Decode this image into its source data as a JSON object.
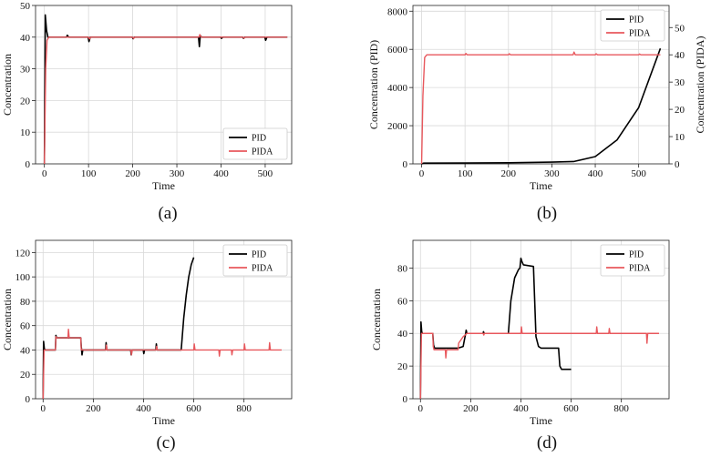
{
  "colors": {
    "pid": "#000000",
    "pida": "#e8585d",
    "grid": "#d9d9d9",
    "axis": "#222222"
  },
  "chart_data": [
    {
      "id": "a",
      "type": "line",
      "caption": "(a)",
      "xlabel": "Time",
      "ylabel": "Concentration",
      "xlim": [
        -20,
        560
      ],
      "ylim": [
        0,
        50
      ],
      "xticks": [
        0,
        100,
        200,
        300,
        400,
        500
      ],
      "yticks": [
        0,
        10,
        20,
        30,
        40,
        50
      ],
      "legend": {
        "position": "bottom-right",
        "entries": [
          "PID",
          "PIDA"
        ]
      },
      "series": [
        {
          "name": "PID",
          "points": [
            [
              0,
              0
            ],
            [
              2,
              47
            ],
            [
              5,
              42
            ],
            [
              8,
              40
            ],
            [
              50,
              40
            ],
            [
              52,
              40.6
            ],
            [
              55,
              40
            ],
            [
              99,
              40
            ],
            [
              101,
              38.6
            ],
            [
              104,
              40
            ],
            [
              199,
              40
            ],
            [
              201,
              39.5
            ],
            [
              204,
              40
            ],
            [
              349,
              40
            ],
            [
              351,
              37
            ],
            [
              353,
              40.5
            ],
            [
              356,
              40
            ],
            [
              399,
              40
            ],
            [
              401,
              39.6
            ],
            [
              404,
              40
            ],
            [
              449,
              40
            ],
            [
              451,
              39.6
            ],
            [
              454,
              40
            ],
            [
              499,
              40
            ],
            [
              501,
              39
            ],
            [
              504,
              40
            ],
            [
              550,
              40
            ]
          ]
        },
        {
          "name": "PIDA",
          "points": [
            [
              0,
              0
            ],
            [
              3,
              30
            ],
            [
              6,
              39
            ],
            [
              10,
              40
            ],
            [
              100,
              40
            ],
            [
              102,
              39.4
            ],
            [
              105,
              40
            ],
            [
              200,
              40
            ],
            [
              202,
              39.6
            ],
            [
              205,
              40
            ],
            [
              350,
              40
            ],
            [
              352,
              40.8
            ],
            [
              355,
              40
            ],
            [
              450,
              40
            ],
            [
              452,
              39.7
            ],
            [
              455,
              40
            ],
            [
              550,
              40
            ]
          ]
        }
      ]
    },
    {
      "id": "b",
      "type": "line",
      "caption": "(b)",
      "xlabel": "Time",
      "ylabel": "Concentration (PID)",
      "ylabel_right": "Concentration (PIDA)",
      "xlim": [
        -20,
        570
      ],
      "ylim": [
        0,
        8300
      ],
      "ylim_right": [
        0,
        58.1
      ],
      "xticks": [
        0,
        100,
        200,
        300,
        400,
        500
      ],
      "yticks": [
        0,
        2000,
        4000,
        6000,
        8000
      ],
      "yticks_right": [
        0,
        10,
        20,
        30,
        40,
        50
      ],
      "legend": {
        "position": "top-right",
        "entries": [
          "PID",
          "PIDA"
        ]
      },
      "series": [
        {
          "name": "PID",
          "axis": "left",
          "points": [
            [
              0,
              0
            ],
            [
              5,
              40
            ],
            [
              100,
              45
            ],
            [
              200,
              60
            ],
            [
              300,
              90
            ],
            [
              350,
              120
            ],
            [
              400,
              380
            ],
            [
              450,
              1250
            ],
            [
              500,
              2950
            ],
            [
              550,
              6050
            ]
          ]
        },
        {
          "name": "PIDA",
          "axis": "right",
          "points": [
            [
              0,
              0
            ],
            [
              3,
              25
            ],
            [
              7,
              39
            ],
            [
              12,
              40
            ],
            [
              100,
              40
            ],
            [
              102,
              40.5
            ],
            [
              105,
              40
            ],
            [
              200,
              40
            ],
            [
              202,
              40.4
            ],
            [
              205,
              40
            ],
            [
              349,
              40
            ],
            [
              351,
              41
            ],
            [
              354,
              40
            ],
            [
              400,
              40
            ],
            [
              402,
              40.4
            ],
            [
              405,
              40
            ],
            [
              500,
              40
            ],
            [
              502,
              40.3
            ],
            [
              505,
              40
            ],
            [
              550,
              40
            ]
          ]
        }
      ]
    },
    {
      "id": "c",
      "type": "line",
      "caption": "(c)",
      "xlabel": "Time",
      "ylabel": "Concentration",
      "xlim": [
        -30,
        990
      ],
      "ylim": [
        0,
        130
      ],
      "xticks": [
        0,
        200,
        400,
        600,
        800
      ],
      "yticks": [
        0,
        20,
        40,
        60,
        80,
        100,
        120
      ],
      "legend": {
        "position": "top-right",
        "entries": [
          "PID",
          "PIDA"
        ]
      },
      "series": [
        {
          "name": "PID",
          "points": [
            [
              0,
              0
            ],
            [
              2,
              47
            ],
            [
              5,
              41
            ],
            [
              8,
              40
            ],
            [
              49,
              40
            ],
            [
              51,
              52
            ],
            [
              54,
              50
            ],
            [
              150,
              50
            ],
            [
              152,
              43
            ],
            [
              155,
              36
            ],
            [
              158,
              40
            ],
            [
              249,
              40
            ],
            [
              251,
              46
            ],
            [
              254,
              40
            ],
            [
              349,
              40
            ],
            [
              351,
              36
            ],
            [
              354,
              40
            ],
            [
              399,
              40
            ],
            [
              401,
              37
            ],
            [
              404,
              40
            ],
            [
              449,
              40
            ],
            [
              451,
              45
            ],
            [
              454,
              40
            ],
            [
              550,
              40
            ],
            [
              560,
              66
            ],
            [
              570,
              85
            ],
            [
              580,
              100
            ],
            [
              590,
              110
            ],
            [
              600,
              116
            ]
          ]
        },
        {
          "name": "PIDA",
          "points": [
            [
              0,
              0
            ],
            [
              4,
              40
            ],
            [
              49,
              40
            ],
            [
              51,
              51
            ],
            [
              54,
              50
            ],
            [
              99,
              50
            ],
            [
              101,
              57
            ],
            [
              104,
              50
            ],
            [
              150,
              50
            ],
            [
              152,
              40
            ],
            [
              250,
              40
            ],
            [
              252,
              44
            ],
            [
              255,
              40
            ],
            [
              350,
              40
            ],
            [
              352,
              36
            ],
            [
              355,
              40
            ],
            [
              450,
              40
            ],
            [
              452,
              43
            ],
            [
              455,
              40
            ],
            [
              600,
              40
            ],
            [
              602,
              45
            ],
            [
              605,
              40
            ],
            [
              700,
              40
            ],
            [
              702,
              35
            ],
            [
              705,
              40
            ],
            [
              750,
              40
            ],
            [
              752,
              36
            ],
            [
              755,
              40
            ],
            [
              800,
              40
            ],
            [
              802,
              45
            ],
            [
              805,
              40
            ],
            [
              900,
              40
            ],
            [
              902,
              46
            ],
            [
              905,
              40
            ],
            [
              950,
              40
            ]
          ]
        }
      ]
    },
    {
      "id": "d",
      "type": "line",
      "caption": "(d)",
      "xlabel": "Time",
      "ylabel": "Concentration",
      "xlim": [
        -30,
        990
      ],
      "ylim": [
        0,
        97
      ],
      "xticks": [
        0,
        200,
        400,
        600,
        800
      ],
      "yticks": [
        0,
        20,
        40,
        60,
        80
      ],
      "legend": {
        "position": "top-right",
        "entries": [
          "PID",
          "PIDA"
        ]
      },
      "series": [
        {
          "name": "PID",
          "points": [
            [
              0,
              0
            ],
            [
              2,
              47
            ],
            [
              5,
              41
            ],
            [
              8,
              40
            ],
            [
              49,
              40
            ],
            [
              52,
              33
            ],
            [
              56,
              31
            ],
            [
              150,
              31
            ],
            [
              170,
              32
            ],
            [
              180,
              40
            ],
            [
              182,
              42
            ],
            [
              185,
              40
            ],
            [
              249,
              40
            ],
            [
              251,
              41
            ],
            [
              254,
              40
            ],
            [
              350,
              40
            ],
            [
              360,
              60
            ],
            [
              375,
              74
            ],
            [
              390,
              79
            ],
            [
              396,
              80
            ],
            [
              400,
              86
            ],
            [
              404,
              84
            ],
            [
              410,
              82
            ],
            [
              450,
              81
            ],
            [
              460,
              38
            ],
            [
              470,
              32
            ],
            [
              480,
              31
            ],
            [
              550,
              31
            ],
            [
              555,
              20
            ],
            [
              562,
              18
            ],
            [
              600,
              18
            ]
          ]
        },
        {
          "name": "PIDA",
          "points": [
            [
              0,
              0
            ],
            [
              4,
              40
            ],
            [
              49,
              40
            ],
            [
              51,
              32
            ],
            [
              54,
              30
            ],
            [
              99,
              30
            ],
            [
              101,
              25
            ],
            [
              104,
              30
            ],
            [
              150,
              30
            ],
            [
              152,
              34
            ],
            [
              170,
              38
            ],
            [
              185,
              40
            ],
            [
              250,
              40
            ],
            [
              252,
              39
            ],
            [
              255,
              40
            ],
            [
              400,
              40
            ],
            [
              402,
              44
            ],
            [
              405,
              40
            ],
            [
              700,
              40
            ],
            [
              702,
              44
            ],
            [
              705,
              40
            ],
            [
              750,
              40
            ],
            [
              752,
              43
            ],
            [
              755,
              40
            ],
            [
              900,
              40
            ],
            [
              902,
              34
            ],
            [
              905,
              40
            ],
            [
              950,
              40
            ]
          ]
        }
      ]
    }
  ]
}
